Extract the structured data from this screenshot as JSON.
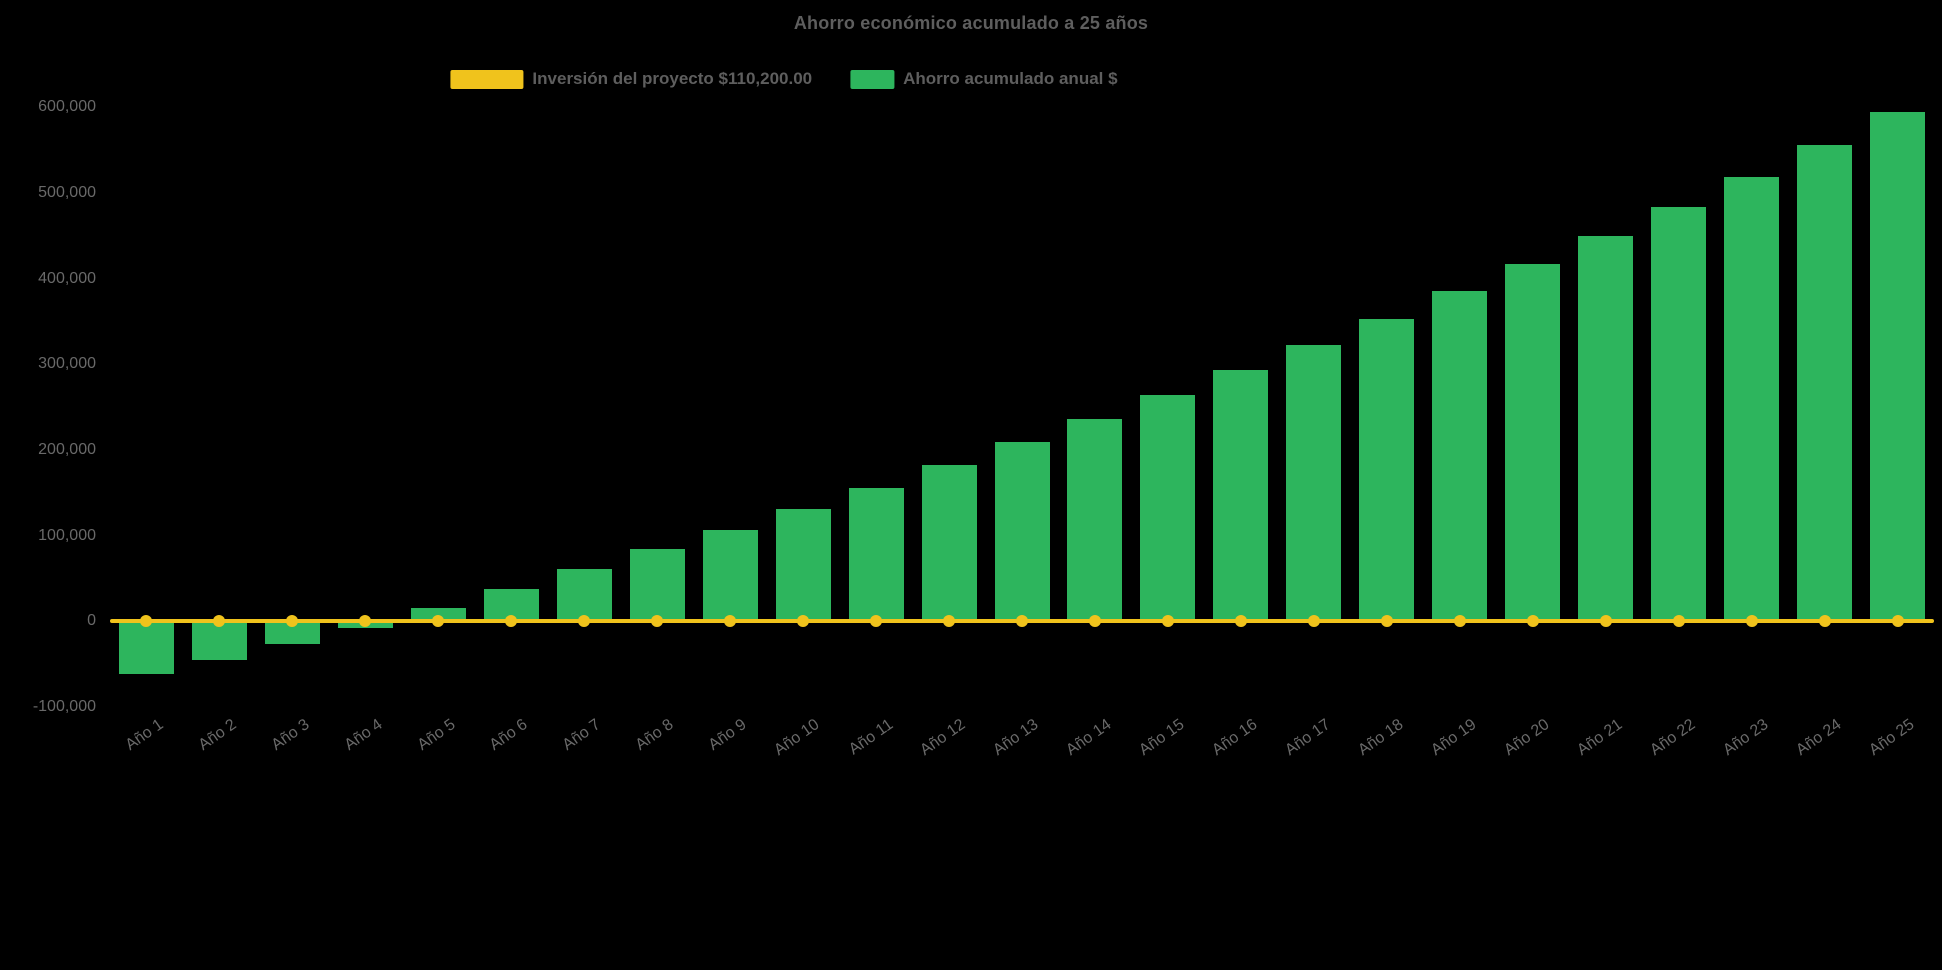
{
  "chart": {
    "title": "Ahorro económico acumulado a 25 años",
    "legend": [
      {
        "label": "Inversión del proyecto $110,200.00",
        "color": "#f0c31c",
        "swatch": "wide-rect"
      },
      {
        "label": "Ahorro acumulado anual $",
        "color": "#2db55d",
        "swatch": "rect"
      }
    ],
    "background_color": "#000000",
    "text_color": "#5e5e5e",
    "axis_label_color": "#696969"
  },
  "chart_data": {
    "type": "bar",
    "title": "Ahorro económico acumulado a 25 años",
    "categories": [
      "Año 1",
      "Año 2",
      "Año 3",
      "Año 4",
      "Año 5",
      "Año 6",
      "Año 7",
      "Año 8",
      "Año 9",
      "Año 10",
      "Año 11",
      "Año 12",
      "Año 13",
      "Año 14",
      "Año 15",
      "Año 16",
      "Año 17",
      "Año 18",
      "Año 19",
      "Año 20",
      "Año 21",
      "Año 22",
      "Año 23",
      "Año 24",
      "Año 25"
    ],
    "series": [
      {
        "name": "Ahorro acumulado anual $",
        "type": "bar",
        "color": "#2db55d",
        "values": [
          -62000,
          -45000,
          -27000,
          -8000,
          15000,
          38000,
          61000,
          84000,
          107000,
          131000,
          156000,
          182000,
          209000,
          236000,
          264000,
          293000,
          323000,
          353000,
          385000,
          417000,
          450000,
          484000,
          519000,
          556000,
          594000
        ]
      },
      {
        "name": "Inversión del proyecto $110,200.00",
        "type": "line",
        "color": "#f0c31c",
        "marker": "circle",
        "values": [
          0,
          0,
          0,
          0,
          0,
          0,
          0,
          0,
          0,
          0,
          0,
          0,
          0,
          0,
          0,
          0,
          0,
          0,
          0,
          0,
          0,
          0,
          0,
          0,
          0
        ]
      }
    ],
    "ylim": [
      -100000,
      620000
    ],
    "y_ticks": [
      -100000,
      0,
      100000,
      200000,
      300000,
      400000,
      500000,
      600000
    ],
    "y_tick_labels": [
      "-100,000",
      "0",
      "100,000",
      "200,000",
      "300,000",
      "400,000",
      "500,000",
      "600,000"
    ],
    "xlabel": "",
    "ylabel": "",
    "grid": false,
    "legend_position": "top",
    "x_tick_rotation": -35
  }
}
